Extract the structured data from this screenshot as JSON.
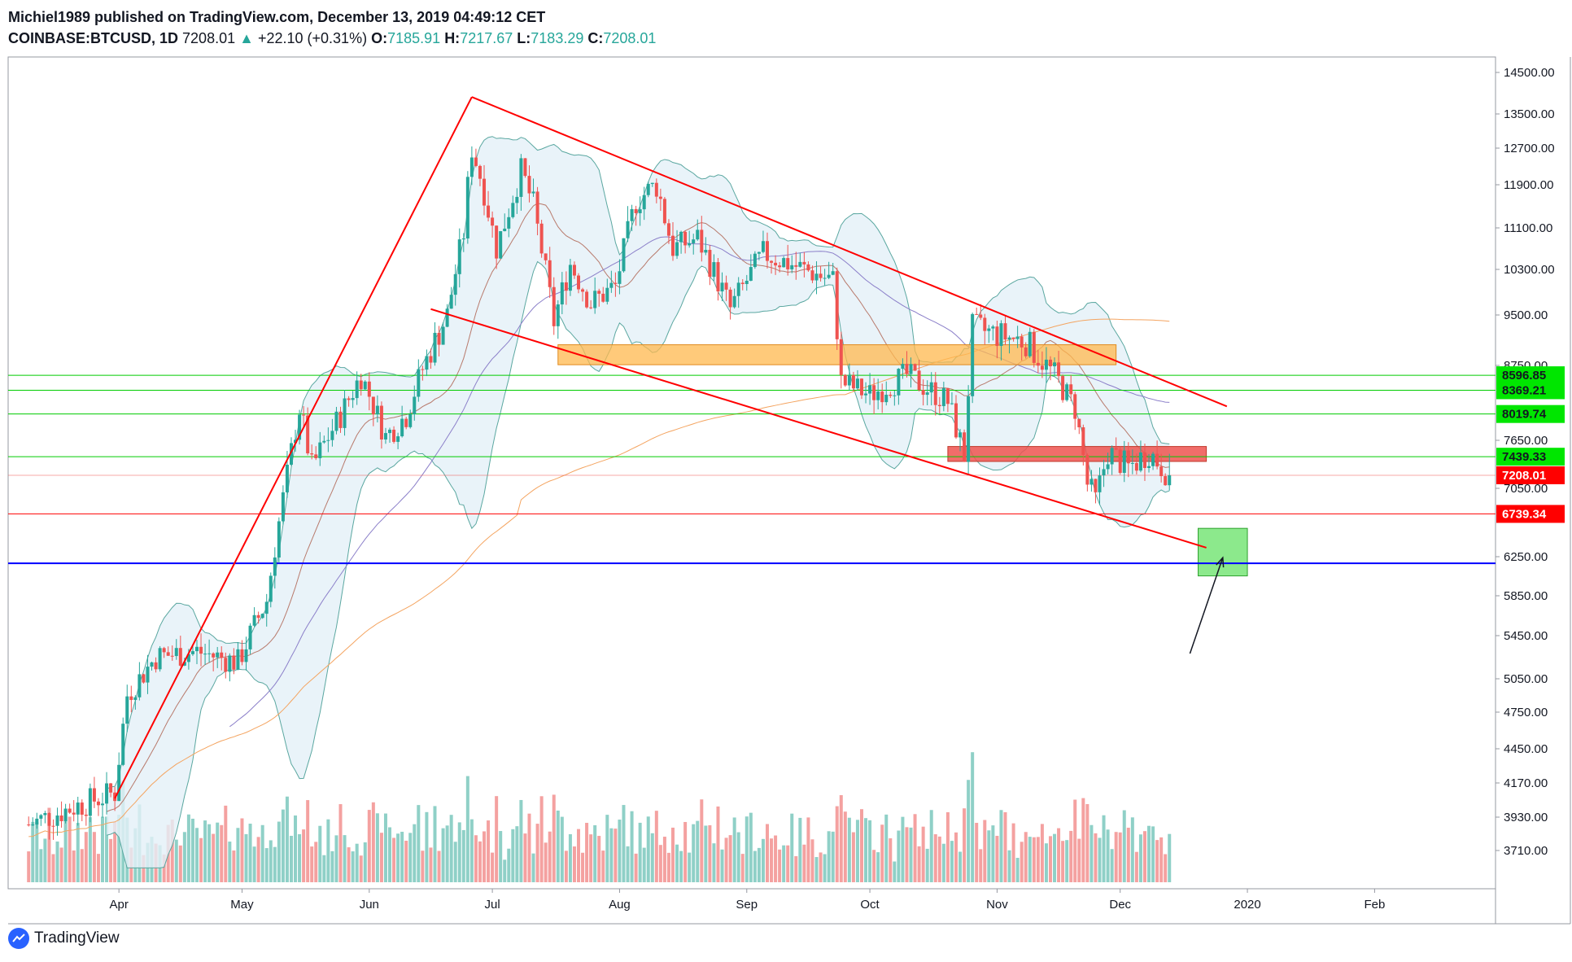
{
  "header": {
    "line1": "Michiel1989 published on TradingView.com, December 13, 2019 04:49:12 CET",
    "symbol": "COINBASE:BTCUSD, 1D",
    "last": "7208.01",
    "arrow": "▲",
    "change": "+22.10 (+0.31%)",
    "o_label": "O:",
    "o": "7185.91",
    "h_label": "H:",
    "h": "7217.67",
    "l_label": "L:",
    "l": "7183.29",
    "c_label": "C:",
    "c": "7208.01"
  },
  "brand": {
    "name": "TradingView",
    "icon": "tradingview-logo-icon"
  },
  "colors": {
    "up": "#26a69a",
    "down": "#ef5350",
    "vol_up": "#8fd0c7",
    "vol_down": "#f4a1a0",
    "bb_fill": "#e3f0f8",
    "bb_line": "#5aa7a0",
    "ma_fast": "#b87a6c",
    "ma_mid": "#8b7fc9",
    "ma_slow": "#f4a460",
    "trend": "#ff0000",
    "green_line": "#00cc00",
    "blue_line": "#0000ff",
    "orange_zone": "#ffb84d",
    "red_zone": "#ef5350",
    "target_zone": "#66e266"
  },
  "chart_data": {
    "type": "candlestick",
    "ylim": [
      3500,
      14800
    ],
    "yscale": "log",
    "x_tick_labels": [
      "Apr",
      "May",
      "Jun",
      "Jul",
      "Aug",
      "Sep",
      "Oct",
      "Nov",
      "Dec",
      "2020",
      "Feb"
    ],
    "y_tick_labels": [
      "14500.00",
      "13500.00",
      "12700.00",
      "11900.00",
      "11100.00",
      "10300.00",
      "9500.00",
      "8750.00",
      "7650.00",
      "7050.00",
      "6250.00",
      "5850.00",
      "5450.00",
      "5050.00",
      "4750.00",
      "4450.00",
      "4170.00",
      "3930.00",
      "3710.00"
    ],
    "price_tags": [
      {
        "label": "8596.85",
        "value": 8596.85,
        "kind": "green"
      },
      {
        "label": "8369.21",
        "value": 8369.21,
        "kind": "green"
      },
      {
        "label": "8019.74",
        "value": 8019.74,
        "kind": "green"
      },
      {
        "label": "7439.33",
        "value": 7439.33,
        "kind": "green"
      },
      {
        "label": "7208.01",
        "value": 7208.01,
        "kind": "red"
      },
      {
        "label": "6739.34",
        "value": 6739.34,
        "kind": "red"
      }
    ],
    "horizontal_lines": [
      {
        "value": 8596.85,
        "style": "green"
      },
      {
        "value": 8369.21,
        "style": "green"
      },
      {
        "value": 8019.74,
        "style": "green"
      },
      {
        "value": 7439.33,
        "style": "green"
      },
      {
        "value": 7208.01,
        "style": "last-price"
      },
      {
        "value": 6739.34,
        "style": "red"
      },
      {
        "value": 6180,
        "style": "blue"
      }
    ],
    "zones": [
      {
        "name": "orange-zone",
        "from": "2019-07-17",
        "to": "2019-11-30",
        "low": 8760,
        "high": 9050
      },
      {
        "name": "red-zone",
        "from": "2019-10-20",
        "to": "2019-12-22",
        "low": 7380,
        "high": 7570
      },
      {
        "name": "target-zone",
        "from": "2019-12-20",
        "to": "2020-01-01",
        "low": 6050,
        "high": 6570
      }
    ],
    "trendlines": [
      {
        "name": "rally-line",
        "from": [
          "2019-03-31",
          4060
        ],
        "to": [
          "2019-06-26",
          13900
        ]
      },
      {
        "name": "channel-upper",
        "from": [
          "2019-06-26",
          13900
        ],
        "to": [
          "2019-12-27",
          8130
        ]
      },
      {
        "name": "channel-lower",
        "from": [
          "2019-06-16",
          9600
        ],
        "to": [
          "2019-12-22",
          6350
        ]
      }
    ],
    "arrow": {
      "from": [
        "2019-12-18",
        5280
      ],
      "to": [
        "2019-12-26",
        6240
      ]
    },
    "price_path": [
      [
        "2019-03-10",
        3880
      ],
      [
        "2019-03-20",
        3990
      ],
      [
        "2019-03-31",
        4100
      ],
      [
        "2019-04-03",
        4900
      ],
      [
        "2019-04-10",
        5250
      ],
      [
        "2019-04-20",
        5300
      ],
      [
        "2019-04-30",
        5200
      ],
      [
        "2019-05-07",
        5800
      ],
      [
        "2019-05-12",
        7200
      ],
      [
        "2019-05-15",
        8100
      ],
      [
        "2019-05-18",
        7300
      ],
      [
        "2019-05-25",
        8000
      ],
      [
        "2019-05-30",
        8600
      ],
      [
        "2019-06-05",
        7700
      ],
      [
        "2019-06-10",
        8000
      ],
      [
        "2019-06-14",
        8700
      ],
      [
        "2019-06-20",
        9500
      ],
      [
        "2019-06-24",
        11000
      ],
      [
        "2019-06-26",
        12700
      ],
      [
        "2019-06-29",
        11800
      ],
      [
        "2019-07-02",
        10700
      ],
      [
        "2019-07-08",
        12200
      ],
      [
        "2019-07-11",
        11500
      ],
      [
        "2019-07-16",
        9400
      ],
      [
        "2019-07-20",
        10400
      ],
      [
        "2019-07-25",
        9700
      ],
      [
        "2019-07-31",
        10000
      ],
      [
        "2019-08-05",
        11600
      ],
      [
        "2019-08-10",
        11900
      ],
      [
        "2019-08-14",
        10700
      ],
      [
        "2019-08-20",
        10900
      ],
      [
        "2019-08-28",
        9600
      ],
      [
        "2019-09-05",
        10600
      ],
      [
        "2019-09-15",
        10300
      ],
      [
        "2019-09-22",
        10100
      ],
      [
        "2019-09-24",
        8500
      ],
      [
        "2019-10-01",
        8300
      ],
      [
        "2019-10-10",
        8600
      ],
      [
        "2019-10-20",
        8200
      ],
      [
        "2019-10-24",
        7450
      ],
      [
        "2019-10-26",
        9300
      ],
      [
        "2019-11-01",
        9200
      ],
      [
        "2019-11-08",
        9100
      ],
      [
        "2019-11-15",
        8600
      ],
      [
        "2019-11-20",
        8100
      ],
      [
        "2019-11-23",
        7100
      ],
      [
        "2019-11-25",
        6900
      ],
      [
        "2019-11-28",
        7500
      ],
      [
        "2019-12-03",
        7300
      ],
      [
        "2019-12-08",
        7500
      ],
      [
        "2019-12-13",
        7208
      ]
    ]
  }
}
